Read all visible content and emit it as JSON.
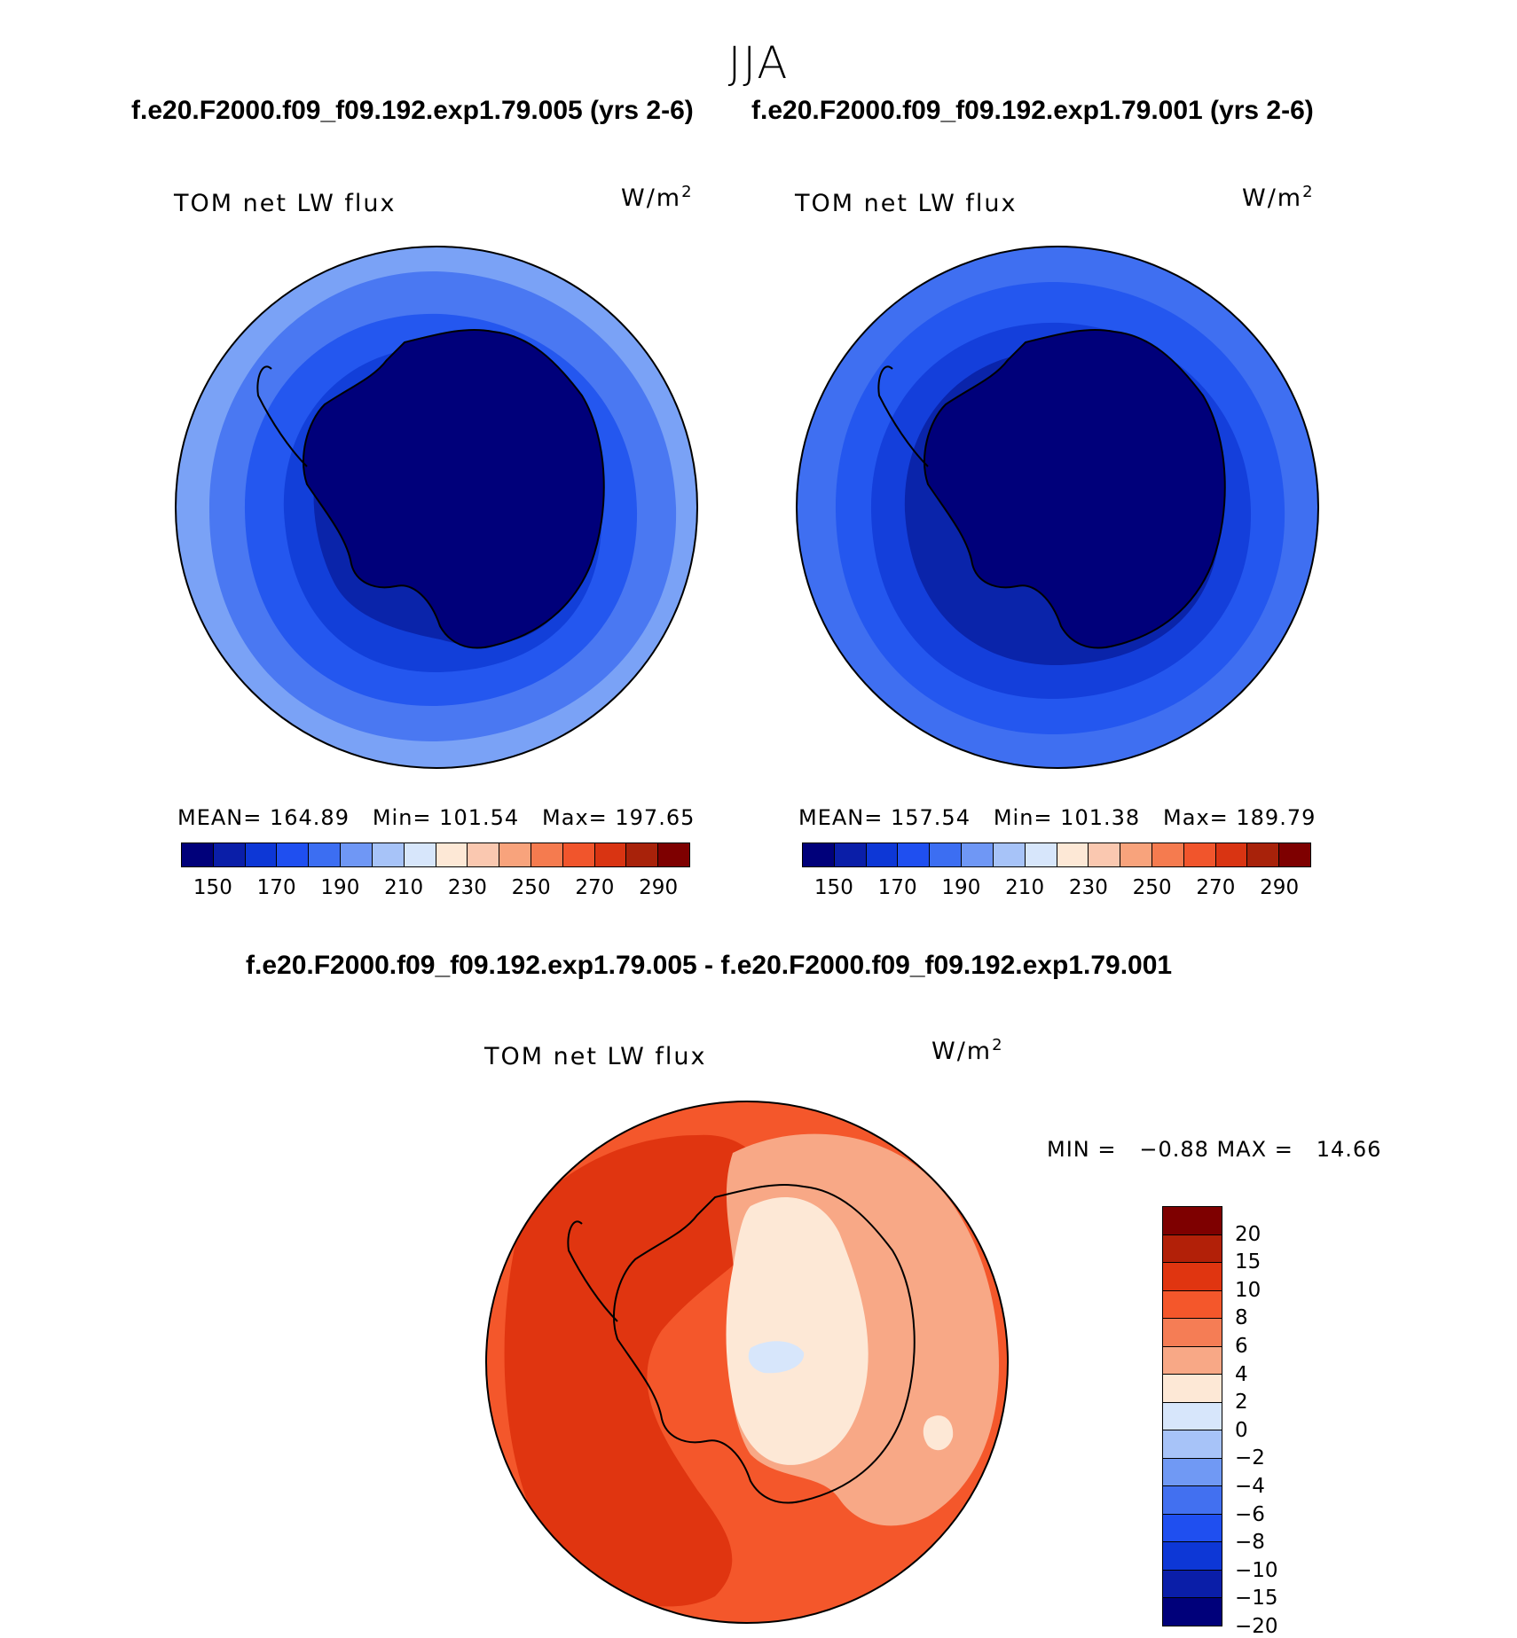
{
  "season": "JJA",
  "header": {
    "left_title": "f.e20.F2000.f09_f09.192.exp1.79.005 (yrs 2-6)",
    "right_title": "f.e20.F2000.f09_f09.192.exp1.79.001 (yrs 2-6)",
    "diff_title": "f.e20.F2000.f09_f09.192.exp1.79.005 - f.e20.F2000.f09_f09.192.exp1.79.001"
  },
  "panels": {
    "left": {
      "variable": "TOM net LW flux",
      "units_base": "W/m",
      "units_exp": "2",
      "stats": "MEAN= 164.89   Min= 101.54   Max= 197.65",
      "colorbar_colors": [
        "#00007a",
        "#0a1ea8",
        "#0d37d6",
        "#1f4ff0",
        "#3c6ef2",
        "#6f97f5",
        "#a7c3f8",
        "#d7e6fb",
        "#fde8d6",
        "#fac8b0",
        "#f8a37c",
        "#f57b4f",
        "#f1552c",
        "#d93412",
        "#a8220a",
        "#7e0000"
      ],
      "colorbar_ticks": [
        "150",
        "170",
        "190",
        "210",
        "230",
        "250",
        "270",
        "290"
      ]
    },
    "right": {
      "variable": "TOM net LW flux",
      "units_base": "W/m",
      "units_exp": "2",
      "stats": "MEAN= 157.54   Min= 101.38   Max= 189.79",
      "colorbar_colors": [
        "#00007a",
        "#0a1ea8",
        "#0d37d6",
        "#1f4ff0",
        "#3c6ef2",
        "#6f97f5",
        "#a7c3f8",
        "#d7e6fb",
        "#fde8d6",
        "#fac8b0",
        "#f8a37c",
        "#f57b4f",
        "#f1552c",
        "#d93412",
        "#a8220a",
        "#7e0000"
      ],
      "colorbar_ticks": [
        "150",
        "170",
        "190",
        "210",
        "230",
        "250",
        "270",
        "290"
      ]
    },
    "diff": {
      "variable": "TOM net LW flux",
      "units_base": "W/m",
      "units_exp": "2",
      "stats": "MIN =   −0.88 MAX =   14.66",
      "colorbar_colors": [
        "#7e0000",
        "#b22008",
        "#e03510",
        "#f4572b",
        "#f57d55",
        "#f8a886",
        "#fde8d6",
        "#d7e6fb",
        "#a7c3f8",
        "#7099f4",
        "#4270f0",
        "#1f4ff0",
        "#0d37d6",
        "#0a1ea8",
        "#00007a"
      ],
      "colorbar_ticks": [
        "20",
        "15",
        "10",
        "8",
        "6",
        "4",
        "2",
        "0",
        "−2",
        "−4",
        "−6",
        "−8",
        "−10",
        "−15",
        "−20"
      ]
    }
  }
}
